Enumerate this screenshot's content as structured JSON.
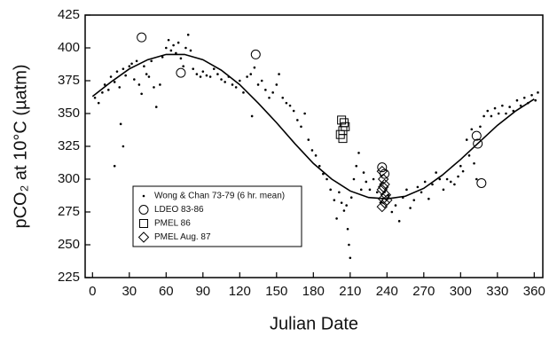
{
  "chart_data": {
    "type": "scatter",
    "xlabel": "Julian Date",
    "ylabel": "pCO₂ at 10°C (µatm)",
    "xlim": [
      -6,
      367
    ],
    "ylim": [
      225,
      425
    ],
    "xticks": [
      0,
      30,
      60,
      90,
      120,
      150,
      180,
      210,
      240,
      270,
      300,
      330,
      360
    ],
    "yticks": [
      225,
      250,
      275,
      300,
      325,
      350,
      375,
      400,
      425
    ],
    "legend": "lower left",
    "series": [
      {
        "name": "Wong & Chan 73-79 (6 hr. mean)",
        "marker": "dot",
        "color": "#000000",
        "x": [
          2,
          5,
          8,
          10,
          13,
          15,
          18,
          20,
          22,
          25,
          27,
          30,
          32,
          34,
          36,
          38,
          40,
          42,
          44,
          46,
          48,
          50,
          52,
          55,
          57,
          60,
          62,
          64,
          66,
          68,
          70,
          72,
          74,
          76,
          78,
          80,
          82,
          85,
          88,
          90,
          93,
          96,
          99,
          102,
          105,
          108,
          111,
          114,
          117,
          120,
          123,
          126,
          129,
          130,
          132,
          135,
          138,
          141,
          144,
          147,
          150,
          152,
          155,
          158,
          161,
          164,
          167,
          170,
          173,
          176,
          179,
          182,
          185,
          188,
          191,
          194,
          197,
          199,
          201,
          203,
          205,
          207,
          208,
          209,
          210,
          211,
          213,
          215,
          217,
          219,
          221,
          223,
          226,
          229,
          232,
          235,
          238,
          241,
          244,
          247,
          250,
          253,
          256,
          259,
          262,
          265,
          268,
          271,
          274,
          277,
          280,
          283,
          286,
          289,
          292,
          295,
          298,
          300,
          302,
          305,
          307,
          309,
          311,
          313,
          316,
          319,
          322,
          325,
          328,
          331,
          334,
          337,
          340,
          343,
          346,
          349,
          352,
          355,
          358,
          361,
          363,
          23,
          25,
          18
        ],
        "y": [
          362,
          358,
          366,
          372,
          368,
          378,
          374,
          382,
          370,
          384,
          379,
          386,
          388,
          376,
          390,
          372,
          365,
          386,
          380,
          378,
          390,
          370,
          355,
          372,
          393,
          400,
          406,
          398,
          402,
          396,
          404,
          392,
          386,
          400,
          410,
          398,
          384,
          380,
          378,
          382,
          379,
          378,
          384,
          380,
          376,
          374,
          378,
          372,
          370,
          375,
          366,
          378,
          380,
          348,
          385,
          372,
          375,
          368,
          362,
          366,
          372,
          380,
          362,
          358,
          356,
          352,
          345,
          340,
          350,
          330,
          322,
          318,
          310,
          304,
          300,
          292,
          284,
          270,
          290,
          282,
          276,
          280,
          262,
          250,
          240,
          286,
          300,
          310,
          320,
          292,
          305,
          298,
          292,
          300,
          290,
          282,
          290,
          288,
          275,
          280,
          268,
          286,
          292,
          278,
          284,
          294,
          290,
          298,
          285,
          296,
          305,
          300,
          292,
          300,
          298,
          296,
          302,
          310,
          306,
          330,
          318,
          338,
          312,
          300,
          340,
          348,
          352,
          348,
          354,
          350,
          356,
          350,
          355,
          352,
          360,
          356,
          362,
          358,
          364,
          360,
          366,
          342,
          325,
          310
        ]
      },
      {
        "marker": "line",
        "color": "#000000",
        "x": [
          0,
          15,
          30,
          45,
          60,
          75,
          90,
          105,
          120,
          135,
          150,
          165,
          180,
          195,
          210,
          225,
          240,
          255,
          270,
          285,
          300,
          315,
          330,
          345,
          360
        ],
        "y": [
          363,
          374,
          384,
          391,
          395,
          395,
          391,
          383,
          372,
          358,
          343,
          327,
          312,
          300,
          291,
          286,
          285,
          287,
          293,
          303,
          315,
          328,
          341,
          352,
          361
        ]
      },
      {
        "name": "LDEO 83-86",
        "marker": "circle",
        "color": "#000000",
        "x": [
          40,
          72,
          133,
          236,
          238,
          313,
          314,
          317
        ],
        "y": [
          408,
          381,
          395,
          309,
          304,
          333,
          327,
          297
        ]
      },
      {
        "name": "PMEL 86",
        "marker": "square",
        "color": "#000000",
        "x": [
          203,
          205,
          206,
          204,
          202,
          204
        ],
        "y": [
          345,
          343,
          340,
          337,
          334,
          331
        ]
      },
      {
        "name": "PMEL Aug. 87",
        "marker": "diamond",
        "color": "#000000",
        "x": [
          236,
          237,
          238,
          236,
          239,
          237,
          238,
          236,
          240,
          237
        ],
        "y": [
          306,
          300,
          296,
          292,
          288,
          285,
          282,
          279,
          284,
          294
        ]
      }
    ]
  }
}
